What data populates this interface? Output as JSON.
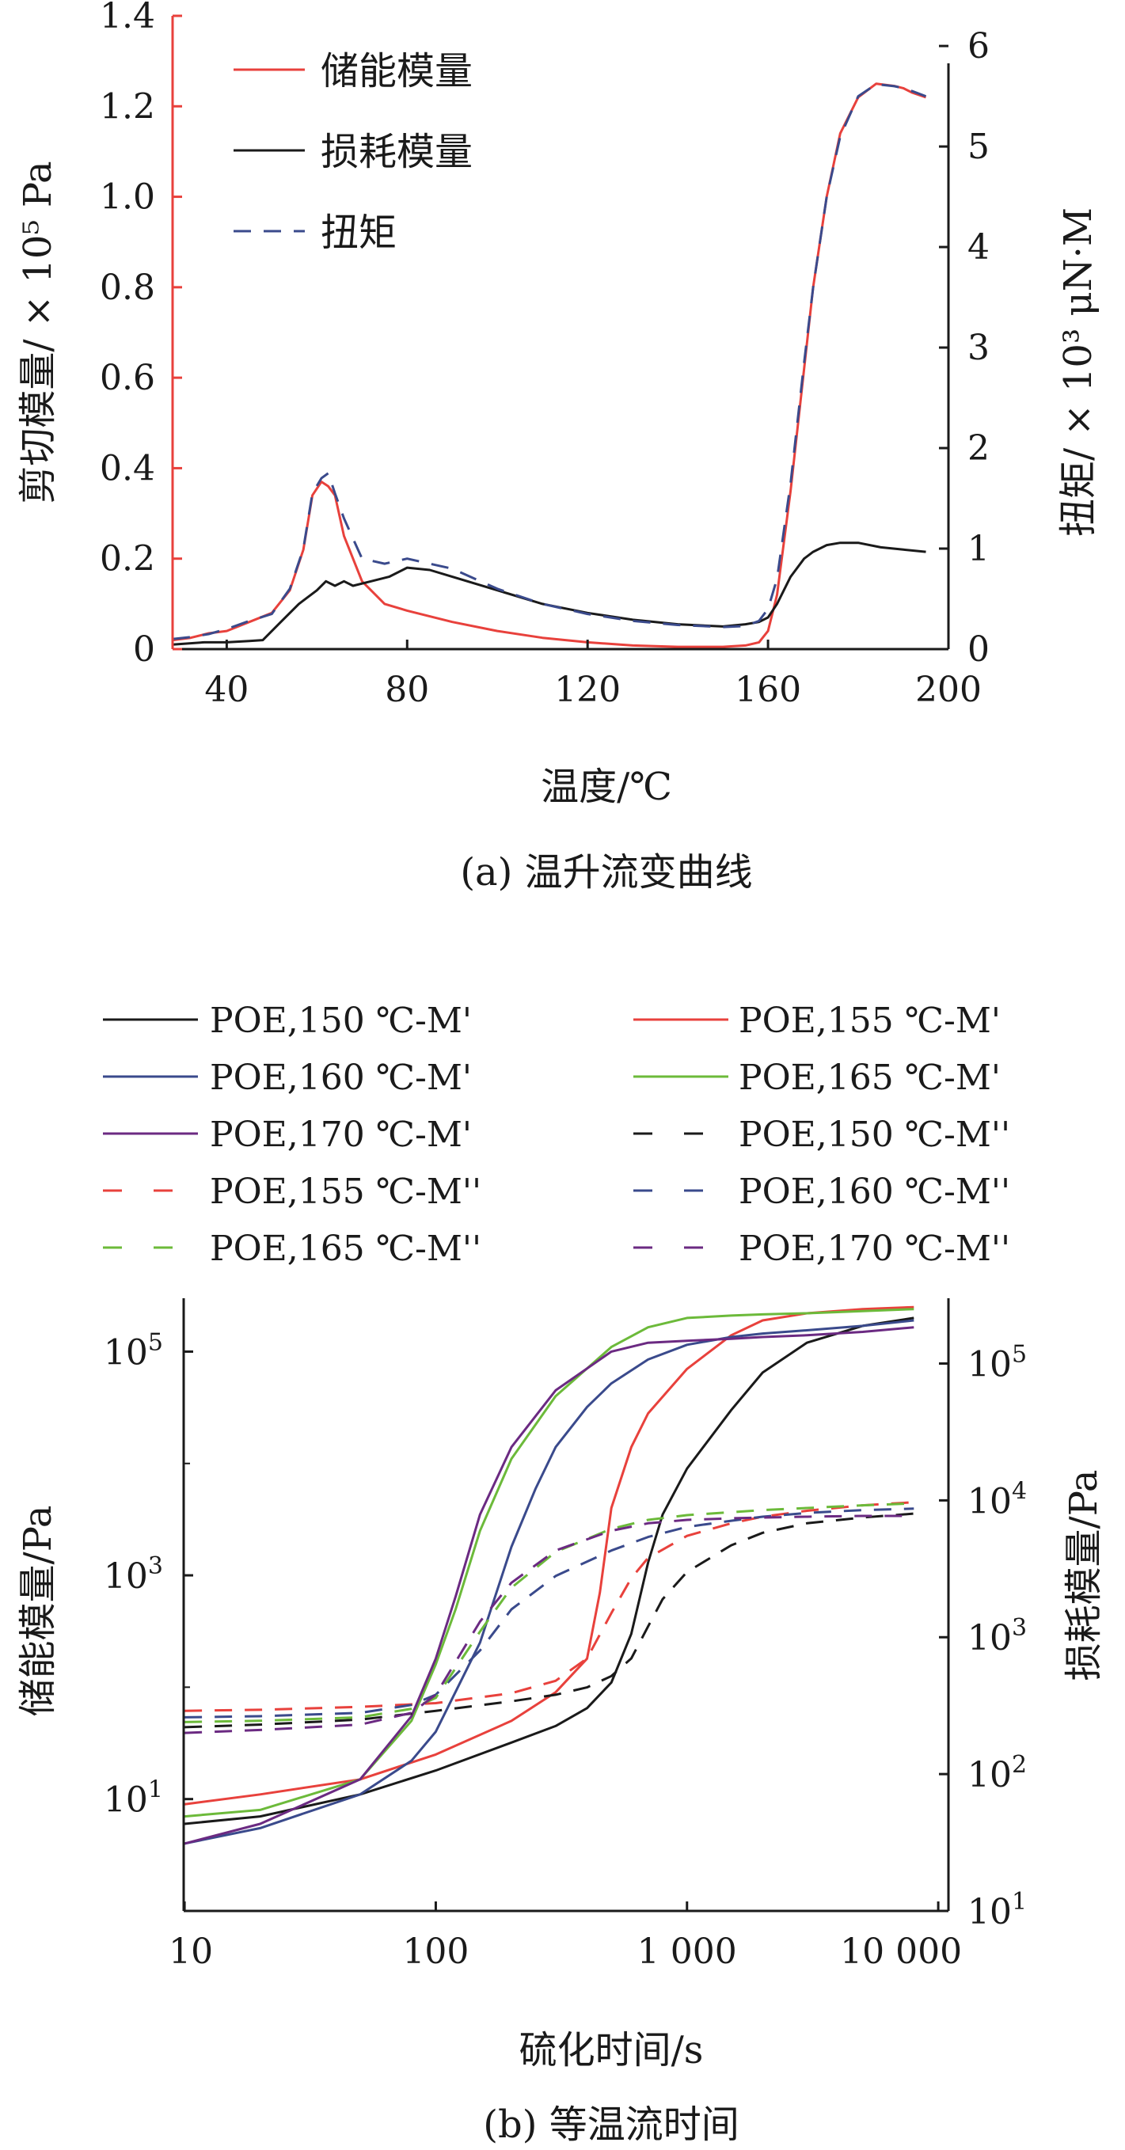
{
  "colors": {
    "red": "#e8413c",
    "black": "#1a1a1a",
    "navy": "#3a4a8c",
    "green": "#6cba3a",
    "purple": "#6b2a82",
    "dash_blue": "#3a4a8c"
  },
  "chart_data": [
    {
      "type": "line",
      "caption": "(a) 温升流变曲线",
      "xlabel": "温度/℃",
      "ylabel_left": "剪切模量/ × 10⁵ Pa",
      "ylabel_right": "扭矩/ × 10³ μN·M",
      "xlim": [
        28,
        200
      ],
      "ylim_left": [
        0,
        1.4
      ],
      "ylim_right": [
        0,
        6.3
      ],
      "x_ticks": [
        "40",
        "80",
        "120",
        "160",
        "200"
      ],
      "x_tick_values": [
        40,
        80,
        120,
        160,
        200
      ],
      "y_ticks_left": [
        "0",
        "0.2",
        "0.4",
        "0.6",
        "0.8",
        "1.0",
        "1.2",
        "1.4"
      ],
      "y_tick_values_left": [
        0,
        0.2,
        0.4,
        0.6,
        0.8,
        1.0,
        1.2,
        1.4
      ],
      "y_ticks_right": [
        "0",
        "1",
        "2",
        "3",
        "4",
        "5",
        "6"
      ],
      "y_tick_values_right": [
        0,
        1,
        2,
        3,
        4,
        5,
        6
      ],
      "legend_position": "top-left",
      "series": [
        {
          "name": "储能模量",
          "color": "#e8413c",
          "style": "solid",
          "axis": "left",
          "x": [
            28,
            32,
            36,
            40,
            45,
            50,
            54,
            57,
            59,
            61,
            62.5,
            64,
            66,
            70,
            75,
            80,
            90,
            100,
            110,
            120,
            130,
            140,
            150,
            155,
            158,
            160,
            162,
            165,
            168,
            170,
            173,
            176,
            180,
            184,
            188,
            190,
            192,
            195
          ],
          "y": [
            0.02,
            0.025,
            0.035,
            0.04,
            0.06,
            0.08,
            0.13,
            0.22,
            0.34,
            0.37,
            0.36,
            0.34,
            0.25,
            0.15,
            0.1,
            0.085,
            0.06,
            0.04,
            0.025,
            0.015,
            0.008,
            0.005,
            0.005,
            0.008,
            0.015,
            0.04,
            0.12,
            0.35,
            0.62,
            0.8,
            1.0,
            1.14,
            1.22,
            1.25,
            1.245,
            1.24,
            1.23,
            1.22
          ]
        },
        {
          "name": "损耗模量",
          "color": "#1a1a1a",
          "style": "solid",
          "axis": "left",
          "x": [
            28,
            35,
            40,
            45,
            48,
            52,
            56,
            60,
            62,
            64,
            66,
            68,
            72,
            76,
            80,
            85,
            90,
            100,
            110,
            120,
            130,
            140,
            150,
            155,
            158,
            160,
            162,
            165,
            168,
            170,
            173,
            176,
            180,
            185,
            190,
            195
          ],
          "y": [
            0.01,
            0.015,
            0.015,
            0.018,
            0.02,
            0.06,
            0.1,
            0.13,
            0.15,
            0.14,
            0.15,
            0.14,
            0.15,
            0.16,
            0.18,
            0.175,
            0.16,
            0.13,
            0.1,
            0.08,
            0.065,
            0.055,
            0.05,
            0.055,
            0.06,
            0.07,
            0.1,
            0.16,
            0.2,
            0.215,
            0.23,
            0.235,
            0.235,
            0.225,
            0.22,
            0.215
          ]
        },
        {
          "name": "扭矩",
          "color": "#3a4a8c",
          "style": "dashed",
          "axis": "right",
          "x": [
            28,
            32,
            36,
            40,
            45,
            50,
            54,
            57,
            59,
            61,
            62.5,
            64,
            66,
            70,
            75,
            80,
            85,
            90,
            100,
            110,
            120,
            130,
            140,
            150,
            155,
            158,
            160,
            162,
            165,
            168,
            170,
            173,
            176,
            180,
            184,
            188,
            190,
            192,
            195
          ],
          "y": [
            0.1,
            0.12,
            0.15,
            0.2,
            0.28,
            0.35,
            0.6,
            1.0,
            1.55,
            1.7,
            1.75,
            1.55,
            1.3,
            0.9,
            0.85,
            0.9,
            0.85,
            0.8,
            0.6,
            0.45,
            0.35,
            0.28,
            0.24,
            0.22,
            0.23,
            0.28,
            0.4,
            0.7,
            1.65,
            2.85,
            3.6,
            4.5,
            5.1,
            5.5,
            5.62,
            5.6,
            5.58,
            5.55,
            5.5
          ]
        }
      ]
    },
    {
      "type": "line",
      "caption": "(b) 等温流时间",
      "xlabel": "硫化时间/s",
      "ylabel_left": "储能模量/Pa",
      "ylabel_right": "损耗模量/Pa",
      "x_scale": "log",
      "y_scale": "log",
      "xlim": [
        10,
        10000
      ],
      "ylim_left": [
        1,
        300000
      ],
      "ylim_right": [
        10,
        300000
      ],
      "x_ticks": [
        "10",
        "100",
        "1 000",
        "10 000"
      ],
      "x_tick_values": [
        10,
        100,
        1000,
        10000
      ],
      "y_ticks_left": [
        {
          "base": "10",
          "exp": "1"
        },
        {
          "base": "10",
          "exp": "3"
        },
        {
          "base": "10",
          "exp": "5"
        }
      ],
      "y_tick_values_left": [
        10,
        1000,
        100000
      ],
      "y_ticks_right": [
        {
          "base": "10",
          "exp": "1"
        },
        {
          "base": "10",
          "exp": "2"
        },
        {
          "base": "10",
          "exp": "3"
        },
        {
          "base": "10",
          "exp": "4"
        },
        {
          "base": "10",
          "exp": "5"
        }
      ],
      "y_tick_values_right": [
        10,
        100,
        1000,
        10000,
        100000
      ],
      "legend_position": "top",
      "series": [
        {
          "name": "POE,150 ℃-M'",
          "color": "#1a1a1a",
          "style": "solid",
          "axis": "left",
          "x": [
            10,
            20,
            50,
            100,
            200,
            300,
            400,
            500,
            600,
            700,
            800,
            1000,
            1500,
            2000,
            3000,
            5000,
            8000
          ],
          "y": [
            6,
            7,
            11,
            18,
            32,
            45,
            65,
            110,
            300,
            1300,
            3500,
            9000,
            30000,
            65000,
            120000,
            170000,
            200000
          ]
        },
        {
          "name": "POE,155 ℃-M'",
          "color": "#e8413c",
          "style": "solid",
          "axis": "left",
          "x": [
            10,
            20,
            50,
            100,
            200,
            300,
            400,
            450,
            500,
            600,
            700,
            1000,
            1500,
            2000,
            3000,
            5000,
            8000
          ],
          "y": [
            9,
            11,
            15,
            25,
            50,
            90,
            180,
            700,
            4000,
            14000,
            28000,
            70000,
            140000,
            190000,
            220000,
            240000,
            250000
          ]
        },
        {
          "name": "POE,160 ℃-M'",
          "color": "#3a4a8c",
          "style": "solid",
          "axis": "left",
          "x": [
            10,
            20,
            50,
            80,
            100,
            150,
            200,
            250,
            300,
            400,
            500,
            700,
            1000,
            1500,
            2000,
            3000,
            5000,
            8000
          ],
          "y": [
            4,
            5.5,
            11,
            22,
            40,
            250,
            1800,
            6000,
            14000,
            32000,
            52000,
            85000,
            115000,
            135000,
            145000,
            155000,
            170000,
            190000
          ]
        },
        {
          "name": "POE,165 ℃-M'",
          "color": "#6cba3a",
          "style": "solid",
          "axis": "left",
          "x": [
            10,
            20,
            50,
            80,
            100,
            120,
            150,
            200,
            300,
            500,
            700,
            1000,
            1500,
            2000,
            3000,
            5000,
            8000
          ],
          "y": [
            7,
            8,
            15,
            50,
            160,
            500,
            2500,
            11000,
            40000,
            110000,
            165000,
            200000,
            210000,
            215000,
            220000,
            230000,
            240000
          ]
        },
        {
          "name": "POE,170 ℃-M'",
          "color": "#6b2a82",
          "style": "solid",
          "axis": "left",
          "x": [
            10,
            20,
            50,
            80,
            100,
            120,
            150,
            200,
            300,
            500,
            700,
            1000,
            1500,
            2000,
            3000,
            5000,
            8000
          ],
          "y": [
            4,
            6,
            15,
            55,
            180,
            650,
            3500,
            14000,
            45000,
            100000,
            120000,
            125000,
            130000,
            135000,
            140000,
            150000,
            165000
          ]
        },
        {
          "name": "POE,150 ℃-M''",
          "color": "#1a1a1a",
          "style": "dashed",
          "axis": "right",
          "x": [
            10,
            20,
            50,
            100,
            200,
            300,
            400,
            500,
            600,
            700,
            800,
            1000,
            1500,
            2000,
            3000,
            5000,
            8000
          ],
          "y": [
            220,
            230,
            250,
            290,
            340,
            380,
            430,
            520,
            700,
            1200,
            1900,
            3000,
            4700,
            5800,
            6800,
            7500,
            8000
          ]
        },
        {
          "name": "POE,155 ℃-M''",
          "color": "#e8413c",
          "style": "dashed",
          "axis": "right",
          "x": [
            10,
            20,
            50,
            100,
            200,
            300,
            400,
            500,
            600,
            700,
            1000,
            1500,
            2000,
            3000,
            5000,
            8000
          ],
          "y": [
            290,
            295,
            310,
            330,
            390,
            480,
            700,
            1500,
            2700,
            3800,
            5500,
            6800,
            7600,
            8400,
            9200,
            9700
          ]
        },
        {
          "name": "POE,160 ℃-M''",
          "color": "#3a4a8c",
          "style": "dashed",
          "axis": "right",
          "x": [
            10,
            20,
            50,
            80,
            100,
            150,
            200,
            300,
            500,
            700,
            1000,
            1500,
            2000,
            3000,
            5000,
            8000
          ],
          "y": [
            260,
            265,
            280,
            320,
            380,
            800,
            1600,
            2800,
            4300,
            5400,
            6400,
            7100,
            7600,
            8100,
            8500,
            8700
          ]
        },
        {
          "name": "POE,165 ℃-M''",
          "color": "#6cba3a",
          "style": "dashed",
          "axis": "right",
          "x": [
            10,
            20,
            50,
            80,
            100,
            150,
            200,
            300,
            500,
            700,
            1000,
            1500,
            2000,
            3000,
            5000,
            8000
          ],
          "y": [
            240,
            245,
            260,
            300,
            360,
            1100,
            2300,
            4200,
            6200,
            7200,
            7800,
            8200,
            8500,
            8800,
            9200,
            9500
          ]
        },
        {
          "name": "POE,170 ℃-M''",
          "color": "#6b2a82",
          "style": "dashed",
          "axis": "right",
          "x": [
            10,
            20,
            50,
            80,
            100,
            150,
            200,
            300,
            500,
            700,
            1000,
            1500,
            2000,
            3000,
            5000,
            8000
          ],
          "y": [
            200,
            210,
            230,
            280,
            380,
            1300,
            2500,
            4300,
            6000,
            6800,
            7200,
            7400,
            7500,
            7600,
            7700,
            7700
          ]
        }
      ]
    }
  ]
}
